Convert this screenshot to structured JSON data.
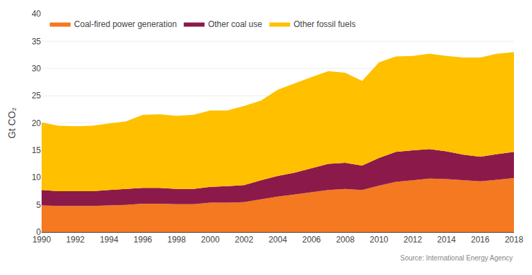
{
  "chart_data": {
    "type": "area",
    "stacked": true,
    "x": [
      1990,
      1991,
      1992,
      1993,
      1994,
      1995,
      1996,
      1997,
      1998,
      1999,
      2000,
      2001,
      2002,
      2003,
      2004,
      2005,
      2006,
      2007,
      2008,
      2009,
      2010,
      2011,
      2012,
      2013,
      2014,
      2015,
      2016,
      2017,
      2018
    ],
    "series": [
      {
        "name": "Coal-fired power generation",
        "color": "#f47920",
        "values": [
          4.9,
          4.8,
          4.8,
          4.8,
          4.9,
          5.0,
          5.2,
          5.2,
          5.1,
          5.1,
          5.4,
          5.4,
          5.5,
          6.0,
          6.5,
          6.9,
          7.3,
          7.7,
          7.9,
          7.7,
          8.5,
          9.2,
          9.5,
          9.8,
          9.7,
          9.5,
          9.3,
          9.6,
          9.9
        ]
      },
      {
        "name": "Other coal use",
        "color": "#8b1a4a",
        "values": [
          2.8,
          2.7,
          2.7,
          2.7,
          2.8,
          2.9,
          2.9,
          2.9,
          2.8,
          2.8,
          2.9,
          3.0,
          3.1,
          3.5,
          3.8,
          4.0,
          4.4,
          4.8,
          4.8,
          4.5,
          5.1,
          5.5,
          5.5,
          5.4,
          5.1,
          4.7,
          4.5,
          4.7,
          4.8
        ]
      },
      {
        "name": "Other fossil fuels",
        "color": "#ffc000",
        "values": [
          12.4,
          12.0,
          11.9,
          12.0,
          12.2,
          12.4,
          13.4,
          13.5,
          13.4,
          13.6,
          14.0,
          13.9,
          14.5,
          14.6,
          15.8,
          16.4,
          16.7,
          17.0,
          16.5,
          15.5,
          17.5,
          17.5,
          17.3,
          17.5,
          17.5,
          17.8,
          18.2,
          18.4,
          18.3
        ]
      }
    ],
    "ylabel": "Gt CO₂",
    "xlim": [
      1990,
      2018
    ],
    "xticks": [
      1990,
      1992,
      1994,
      1996,
      1998,
      2000,
      2002,
      2004,
      2006,
      2008,
      2010,
      2012,
      2014,
      2016,
      2018
    ],
    "ylim": [
      0,
      40
    ],
    "yticks": [
      0,
      5,
      10,
      15,
      20,
      25,
      30,
      35,
      40
    ],
    "grid": true,
    "legend": "top left",
    "annotations": [
      "Source: International Energy Agency"
    ]
  }
}
